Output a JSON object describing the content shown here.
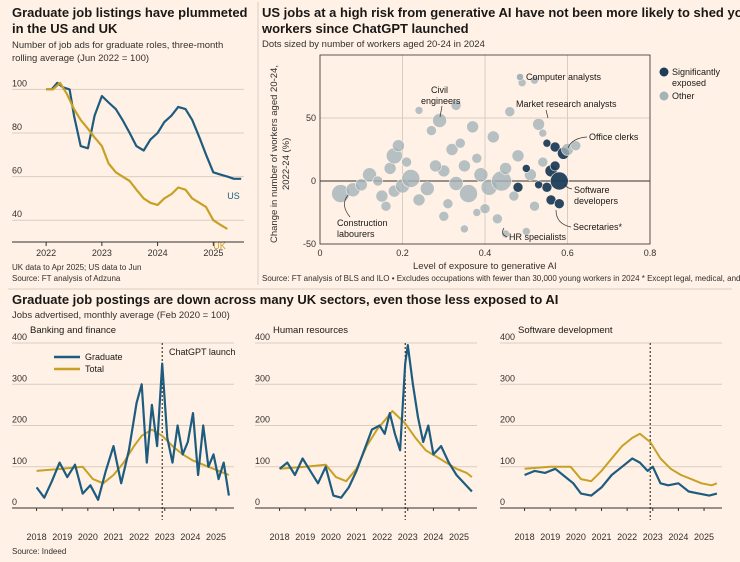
{
  "chart_data": [
    {
      "type": "line",
      "title": "Graduate job listings have plummeted in the US and UK",
      "subtitle": "Number of job ads for graduate roles, three-month rolling average (Jun 2022 = 100)",
      "x_ticks": [
        "2022",
        "2023",
        "2024",
        "2025"
      ],
      "y_ticks": [
        "40",
        "60",
        "80",
        "100"
      ],
      "ylim": [
        30,
        108
      ],
      "series": [
        {
          "name": "US",
          "color": "#1e5c7f",
          "end": 2025.5,
          "x": [
            2022.0,
            2022.1,
            2022.2,
            2022.3,
            2022.42,
            2022.5,
            2022.62,
            2022.75,
            2022.87,
            2023.0,
            2023.12,
            2023.25,
            2023.37,
            2023.5,
            2023.62,
            2023.75,
            2023.87,
            2024.0,
            2024.12,
            2024.25,
            2024.37,
            2024.5,
            2024.62,
            2024.75,
            2024.87,
            2025.0,
            2025.12,
            2025.25,
            2025.37,
            2025.5
          ],
          "y": [
            100,
            100,
            103,
            101,
            100,
            88,
            74,
            73,
            88,
            97,
            94,
            91,
            86,
            80,
            74,
            72,
            77,
            80,
            85,
            88,
            92,
            91,
            86,
            78,
            70,
            62,
            61,
            60,
            59,
            59
          ]
        },
        {
          "name": "UK",
          "color": "#c8a025",
          "end": 2025.25,
          "x": [
            2022.0,
            2022.12,
            2022.25,
            2022.37,
            2022.5,
            2022.62,
            2022.75,
            2022.87,
            2023.0,
            2023.12,
            2023.25,
            2023.37,
            2023.5,
            2023.62,
            2023.75,
            2023.87,
            2024.0,
            2024.12,
            2024.25,
            2024.37,
            2024.5,
            2024.62,
            2024.75,
            2024.87,
            2025.0,
            2025.12,
            2025.25
          ],
          "y": [
            100,
            100,
            103,
            98,
            91,
            86,
            82,
            78,
            74,
            66,
            62,
            60,
            58,
            54,
            50,
            48,
            47,
            50,
            52,
            55,
            54,
            50,
            48,
            46,
            40,
            38,
            36
          ]
        }
      ],
      "notes": [
        "UK data to Apr 2025; US data to Jun",
        "Source: FT analysis of Adzuna"
      ]
    },
    {
      "type": "scatter",
      "title": "US jobs at a high risk from generative AI have not been more likely to shed young workers since ChatGPT launched",
      "subtitle": "Dots sized by number of workers aged 20-24 in 2024",
      "xlabel": "Level of exposure to generative AI",
      "ylabel": "Change in number of workers aged 20-24, 2022-24 (%)",
      "xlim": [
        0,
        0.8
      ],
      "ylim": [
        -50,
        100
      ],
      "x_ticks": [
        "0",
        "0.2",
        "0.4",
        "0.6",
        "0.8"
      ],
      "y_ticks": [
        "-50",
        "0",
        "50"
      ],
      "legend": [
        {
          "name": "Significantly exposed",
          "color": "#1e3d59"
        },
        {
          "name": "Other",
          "color": "#a4b3b8"
        }
      ],
      "legend_position": "top-right",
      "points": [
        [
          0.05,
          -10,
          9,
          "o"
        ],
        [
          0.08,
          -7,
          7,
          "o"
        ],
        [
          0.1,
          -3,
          6,
          "o"
        ],
        [
          0.12,
          5,
          7,
          "o"
        ],
        [
          0.14,
          0,
          5,
          "o"
        ],
        [
          0.15,
          -12,
          6,
          "o"
        ],
        [
          0.17,
          10,
          6,
          "o"
        ],
        [
          0.18,
          20,
          8,
          "o"
        ],
        [
          0.18,
          -8,
          6,
          "o"
        ],
        [
          0.19,
          28,
          6,
          "o"
        ],
        [
          0.2,
          -4,
          7,
          "o"
        ],
        [
          0.21,
          15,
          5,
          "o"
        ],
        [
          0.22,
          2,
          9,
          "o"
        ],
        [
          0.24,
          -15,
          6,
          "o"
        ],
        [
          0.26,
          -6,
          7,
          "o"
        ],
        [
          0.27,
          40,
          5,
          "o"
        ],
        [
          0.29,
          48,
          7,
          "o"
        ],
        [
          0.3,
          8,
          6,
          "o"
        ],
        [
          0.31,
          -18,
          5,
          "o"
        ],
        [
          0.32,
          25,
          6,
          "o"
        ],
        [
          0.33,
          60,
          5,
          "o"
        ],
        [
          0.33,
          -2,
          7,
          "o"
        ],
        [
          0.34,
          30,
          5,
          "o"
        ],
        [
          0.35,
          12,
          6,
          "o"
        ],
        [
          0.36,
          -10,
          9,
          "o"
        ],
        [
          0.37,
          43,
          6,
          "o"
        ],
        [
          0.38,
          18,
          5,
          "o"
        ],
        [
          0.39,
          5,
          7,
          "o"
        ],
        [
          0.4,
          -22,
          5,
          "o"
        ],
        [
          0.41,
          -5,
          8,
          "o"
        ],
        [
          0.42,
          35,
          6,
          "o"
        ],
        [
          0.43,
          -30,
          5,
          "o"
        ],
        [
          0.44,
          0,
          10,
          "o"
        ],
        [
          0.45,
          10,
          6,
          "o"
        ],
        [
          0.46,
          55,
          5,
          "o"
        ],
        [
          0.47,
          -12,
          5,
          "o"
        ],
        [
          0.48,
          20,
          6,
          "o"
        ],
        [
          0.49,
          78,
          4,
          "o"
        ],
        [
          0.5,
          -40,
          4,
          "o"
        ],
        [
          0.51,
          5,
          6,
          "o"
        ],
        [
          0.52,
          -20,
          5,
          "o"
        ],
        [
          0.53,
          45,
          6,
          "o"
        ],
        [
          0.54,
          15,
          5,
          "o"
        ],
        [
          0.3,
          -28,
          5,
          "o"
        ],
        [
          0.24,
          56,
          4,
          "o"
        ],
        [
          0.16,
          -20,
          5,
          "o"
        ],
        [
          0.28,
          12,
          6,
          "o"
        ],
        [
          0.35,
          -38,
          4,
          "o"
        ],
        [
          0.45,
          -42,
          4,
          "o"
        ],
        [
          0.38,
          -25,
          4,
          "o"
        ],
        [
          0.52,
          80,
          4,
          "o"
        ],
        [
          0.55,
          -5,
          5,
          "e"
        ],
        [
          0.56,
          8,
          6,
          "e"
        ],
        [
          0.56,
          -15,
          5,
          "e"
        ],
        [
          0.57,
          27,
          5,
          "e"
        ],
        [
          0.58,
          0,
          9,
          "e"
        ],
        [
          0.59,
          22,
          6,
          "e"
        ],
        [
          0.57,
          12,
          5,
          "e"
        ],
        [
          0.55,
          30,
          4,
          "e"
        ],
        [
          0.58,
          -18,
          5,
          "e"
        ],
        [
          0.5,
          10,
          4,
          "e"
        ],
        [
          0.53,
          -3,
          4,
          "e"
        ],
        [
          0.6,
          25,
          6,
          "o"
        ],
        [
          0.62,
          28,
          5,
          "o"
        ],
        [
          0.54,
          38,
          4,
          "o"
        ],
        [
          0.48,
          -5,
          5,
          "e"
        ]
      ],
      "annotations": [
        "Computer analysts",
        "Civil engineers",
        "Market research analysts",
        "Office clerks",
        "Software developers",
        "Construction labourers",
        "HR specialists",
        "Secretaries*"
      ],
      "source": "Source: FT analysis of BLS and ILO • Excludes occupations with fewer than 30,000 young workers in 2024  * Except legal, medical, and executive"
    },
    {
      "type": "line",
      "title": "Graduate job postings are down across many UK sectors, even those less exposed to AI",
      "subtitle": "Jobs advertised, monthly average (Feb 2020 = 100)",
      "panels": [
        "Banking and finance",
        "Human resources",
        "Software development"
      ],
      "x_ticks": [
        "2018",
        "2019",
        "2020",
        "2021",
        "2022",
        "2023",
        "2024",
        "2025"
      ],
      "y_ticks": [
        "0",
        "100",
        "200",
        "300",
        "400"
      ],
      "ylim": [
        0,
        400
      ],
      "event": {
        "x": 2022.9,
        "label": "ChatGPT launch"
      },
      "legend": [
        {
          "name": "Graduate",
          "color": "#1e5c7f"
        },
        {
          "name": "Total",
          "color": "#c8a025"
        }
      ],
      "graduate": [
        [
          [
            2018.0,
            50
          ],
          [
            2018.3,
            25
          ],
          [
            2018.6,
            65
          ],
          [
            2018.9,
            110
          ],
          [
            2019.2,
            75
          ],
          [
            2019.5,
            105
          ],
          [
            2019.8,
            35
          ],
          [
            2020.1,
            55
          ],
          [
            2020.4,
            20
          ],
          [
            2020.7,
            90
          ],
          [
            2021.0,
            150
          ],
          [
            2021.3,
            60
          ],
          [
            2021.6,
            140
          ],
          [
            2021.9,
            255
          ],
          [
            2022.1,
            300
          ],
          [
            2022.3,
            110
          ],
          [
            2022.5,
            250
          ],
          [
            2022.7,
            150
          ],
          [
            2022.9,
            350
          ],
          [
            2023.1,
            170
          ],
          [
            2023.3,
            110
          ],
          [
            2023.5,
            200
          ],
          [
            2023.7,
            130
          ],
          [
            2023.9,
            160
          ],
          [
            2024.1,
            230
          ],
          [
            2024.3,
            80
          ],
          [
            2024.5,
            200
          ],
          [
            2024.7,
            100
          ],
          [
            2024.9,
            130
          ],
          [
            2025.1,
            70
          ],
          [
            2025.3,
            110
          ],
          [
            2025.5,
            30
          ]
        ],
        [
          [
            2018.0,
            95
          ],
          [
            2018.3,
            110
          ],
          [
            2018.6,
            80
          ],
          [
            2018.9,
            120
          ],
          [
            2019.2,
            90
          ],
          [
            2019.5,
            60
          ],
          [
            2019.8,
            100
          ],
          [
            2020.1,
            30
          ],
          [
            2020.4,
            25
          ],
          [
            2020.7,
            50
          ],
          [
            2021.0,
            90
          ],
          [
            2021.3,
            140
          ],
          [
            2021.6,
            190
          ],
          [
            2021.9,
            200
          ],
          [
            2022.1,
            180
          ],
          [
            2022.3,
            230
          ],
          [
            2022.5,
            180
          ],
          [
            2022.7,
            140
          ],
          [
            2022.9,
            350
          ],
          [
            2023.0,
            395
          ],
          [
            2023.2,
            300
          ],
          [
            2023.4,
            220
          ],
          [
            2023.6,
            160
          ],
          [
            2023.8,
            200
          ],
          [
            2024.0,
            130
          ],
          [
            2024.3,
            150
          ],
          [
            2024.6,
            110
          ],
          [
            2024.9,
            80
          ],
          [
            2025.2,
            60
          ],
          [
            2025.5,
            40
          ]
        ],
        [
          [
            2018.0,
            80
          ],
          [
            2018.4,
            90
          ],
          [
            2018.8,
            85
          ],
          [
            2019.2,
            95
          ],
          [
            2019.6,
            75
          ],
          [
            2019.9,
            60
          ],
          [
            2020.2,
            35
          ],
          [
            2020.6,
            30
          ],
          [
            2021.0,
            50
          ],
          [
            2021.4,
            80
          ],
          [
            2021.8,
            100
          ],
          [
            2022.2,
            120
          ],
          [
            2022.5,
            110
          ],
          [
            2022.8,
            90
          ],
          [
            2023.0,
            100
          ],
          [
            2023.3,
            60
          ],
          [
            2023.6,
            55
          ],
          [
            2024.0,
            60
          ],
          [
            2024.4,
            40
          ],
          [
            2024.8,
            35
          ],
          [
            2025.2,
            30
          ],
          [
            2025.5,
            35
          ]
        ]
      ],
      "total": [
        [
          [
            2018.0,
            90
          ],
          [
            2019.0,
            95
          ],
          [
            2019.8,
            100
          ],
          [
            2020.2,
            70
          ],
          [
            2020.6,
            60
          ],
          [
            2021.0,
            80
          ],
          [
            2021.4,
            110
          ],
          [
            2021.8,
            150
          ],
          [
            2022.1,
            175
          ],
          [
            2022.5,
            190
          ],
          [
            2022.9,
            175
          ],
          [
            2023.3,
            150
          ],
          [
            2023.7,
            130
          ],
          [
            2024.1,
            115
          ],
          [
            2024.5,
            105
          ],
          [
            2024.9,
            95
          ],
          [
            2025.3,
            85
          ],
          [
            2025.5,
            80
          ]
        ],
        [
          [
            2018.0,
            95
          ],
          [
            2019.0,
            100
          ],
          [
            2019.8,
            105
          ],
          [
            2020.2,
            75
          ],
          [
            2020.6,
            65
          ],
          [
            2021.0,
            95
          ],
          [
            2021.4,
            150
          ],
          [
            2021.8,
            190
          ],
          [
            2022.2,
            220
          ],
          [
            2022.4,
            235
          ],
          [
            2022.9,
            205
          ],
          [
            2023.3,
            170
          ],
          [
            2023.7,
            140
          ],
          [
            2024.1,
            125
          ],
          [
            2024.5,
            110
          ],
          [
            2024.9,
            95
          ],
          [
            2025.3,
            85
          ],
          [
            2025.5,
            75
          ]
        ],
        [
          [
            2018.0,
            95
          ],
          [
            2019.0,
            100
          ],
          [
            2019.8,
            100
          ],
          [
            2020.2,
            70
          ],
          [
            2020.6,
            65
          ],
          [
            2021.0,
            90
          ],
          [
            2021.4,
            120
          ],
          [
            2021.8,
            150
          ],
          [
            2022.2,
            170
          ],
          [
            2022.5,
            180
          ],
          [
            2022.9,
            160
          ],
          [
            2023.3,
            120
          ],
          [
            2023.7,
            95
          ],
          [
            2024.1,
            80
          ],
          [
            2024.5,
            70
          ],
          [
            2024.9,
            60
          ],
          [
            2025.3,
            55
          ],
          [
            2025.5,
            60
          ]
        ]
      ],
      "source": "Source: Indeed"
    }
  ]
}
